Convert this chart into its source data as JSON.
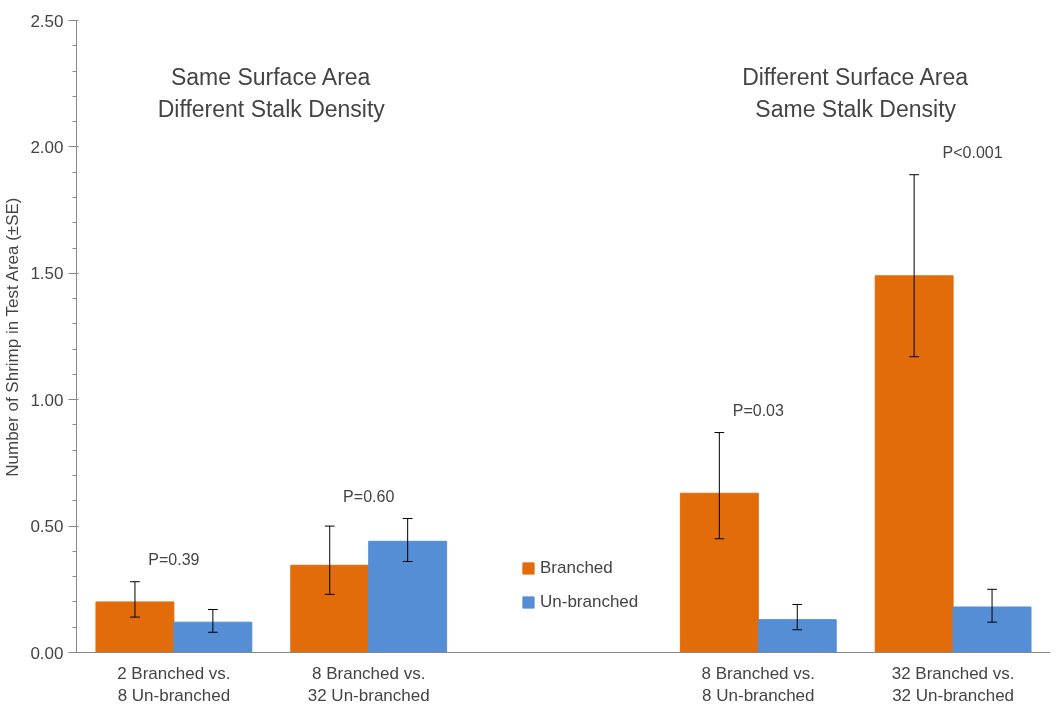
{
  "chart_data": {
    "type": "bar",
    "ylabel": "Number of Shrimp in Test Area (±SE)",
    "categories": [
      "2 Branched vs.\n8 Un-branched",
      "8 Branched vs.\n32 Un-branched",
      null,
      "8 Branched vs.\n8 Un-branched",
      "32 Branched vs.\n32 Un-branched"
    ],
    "series": [
      {
        "name": "Branched",
        "color": "#e36c0a",
        "values": [
          0.2,
          0.345,
          null,
          0.63,
          1.49
        ],
        "errors": [
          [
            0.14,
            0.28
          ],
          [
            0.23,
            0.5
          ],
          null,
          [
            0.45,
            0.87
          ],
          [
            1.17,
            1.89
          ]
        ]
      },
      {
        "name": "Un-branched",
        "color": "#558ed5",
        "values": [
          0.12,
          0.44,
          null,
          0.13,
          0.18
        ],
        "errors": [
          [
            0.08,
            0.17
          ],
          [
            0.36,
            0.53
          ],
          null,
          [
            0.09,
            0.19
          ],
          [
            0.12,
            0.25
          ]
        ]
      }
    ],
    "ylim": [
      0,
      2.5
    ],
    "yticks": [
      {
        "value": 0,
        "label": "0.00"
      },
      {
        "value": 0.5,
        "label": "0.50"
      },
      {
        "value": 1.0,
        "label": "1.00"
      },
      {
        "value": 1.5,
        "label": "1.50"
      },
      {
        "value": 2.0,
        "label": "2.00"
      },
      {
        "value": 2.5,
        "label": "2.50"
      }
    ],
    "annotations": [
      "Same Surface Area\nDifferent Stalk Density",
      "Different Surface Area\nSame Stalk Density",
      "P=0.39",
      "P=0.60",
      "P=0.03",
      "P<0.001"
    ],
    "legend": "bottom",
    "grid": false
  }
}
